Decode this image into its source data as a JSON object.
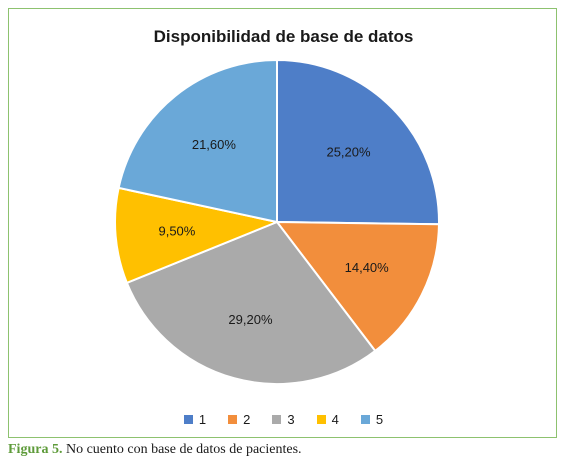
{
  "chart_data": {
    "type": "pie",
    "title": "Disponibilidad de base de datos",
    "categories": [
      "1",
      "2",
      "3",
      "4",
      "5"
    ],
    "values": [
      25.2,
      14.4,
      29.2,
      9.5,
      21.6
    ],
    "labels": [
      "25,20%",
      "14,40%",
      "29,20%",
      "9,50%",
      "21,60%"
    ],
    "colors": [
      "#4e7ec8",
      "#f28e3c",
      "#aaaaaa",
      "#ffc000",
      "#6aa8d8"
    ],
    "legend": "bottom"
  },
  "caption": {
    "figure_label": "Figura 5.",
    "text": " No cuento con base de datos de pacientes."
  }
}
